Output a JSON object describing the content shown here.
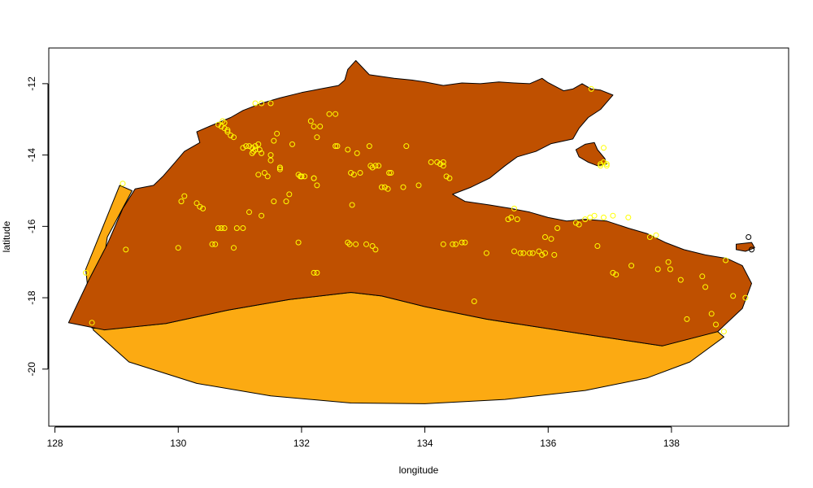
{
  "chart_data": {
    "type": "scatter",
    "title": "",
    "xlabel": "longitude",
    "ylabel": "latitude",
    "xlim": [
      127.9,
      139.9
    ],
    "ylim": [
      -21.6,
      -11.0
    ],
    "x_ticks": [
      128,
      130,
      132,
      134,
      136,
      138
    ],
    "y_ticks": [
      -12,
      -14,
      -16,
      -18,
      -20
    ],
    "grid": false,
    "legend": "none",
    "colors": {
      "background": "#ffffff",
      "land": "#bf5000",
      "buffer": "#fcaa12",
      "points_inside": "#ffff00",
      "points_outside": "#000000",
      "outline": "#000000"
    },
    "regions": [
      {
        "name": "buffer",
        "type": "area",
        "color": "#fcaa12",
        "outline": [
          [
            128.5,
            -17.2
          ],
          [
            129.05,
            -14.85
          ],
          [
            129.25,
            -15.0
          ],
          [
            128.85,
            -16.3
          ],
          [
            128.7,
            -18.0
          ],
          [
            128.62,
            -18.9
          ],
          [
            129.2,
            -19.8
          ],
          [
            130.3,
            -20.4
          ],
          [
            131.5,
            -20.75
          ],
          [
            132.8,
            -20.95
          ],
          [
            134.0,
            -20.97
          ],
          [
            135.3,
            -20.85
          ],
          [
            136.6,
            -20.6
          ],
          [
            137.6,
            -20.25
          ],
          [
            138.3,
            -19.8
          ],
          [
            138.85,
            -19.1
          ],
          [
            138.75,
            -18.95
          ],
          [
            137.85,
            -19.35
          ],
          [
            136.5,
            -19.0
          ],
          [
            135.0,
            -18.6
          ],
          [
            134.0,
            -18.25
          ],
          [
            133.3,
            -17.95
          ],
          [
            132.8,
            -17.85
          ],
          [
            131.8,
            -18.05
          ],
          [
            130.8,
            -18.35
          ],
          [
            129.8,
            -18.72
          ],
          [
            128.95,
            -18.87
          ],
          [
            128.6,
            -18.85
          ]
        ]
      },
      {
        "name": "land",
        "type": "area",
        "color": "#bf5000",
        "outline": [
          [
            128.22,
            -18.7
          ],
          [
            128.55,
            -17.5
          ],
          [
            128.85,
            -16.5
          ],
          [
            129.1,
            -15.5
          ],
          [
            129.3,
            -14.95
          ],
          [
            129.6,
            -14.85
          ],
          [
            129.75,
            -14.6
          ],
          [
            129.95,
            -14.2
          ],
          [
            130.1,
            -13.9
          ],
          [
            130.35,
            -13.65
          ],
          [
            130.3,
            -13.35
          ],
          [
            130.5,
            -13.2
          ],
          [
            130.85,
            -12.95
          ],
          [
            131.05,
            -12.75
          ],
          [
            131.35,
            -12.55
          ],
          [
            131.65,
            -12.4
          ],
          [
            132.0,
            -12.25
          ],
          [
            132.3,
            -12.15
          ],
          [
            132.6,
            -12.05
          ],
          [
            132.7,
            -11.9
          ],
          [
            132.75,
            -11.6
          ],
          [
            132.88,
            -11.35
          ],
          [
            133.1,
            -11.75
          ],
          [
            133.5,
            -11.85
          ],
          [
            133.8,
            -11.9
          ],
          [
            134.0,
            -11.95
          ],
          [
            134.3,
            -12.05
          ],
          [
            134.6,
            -11.98
          ],
          [
            134.9,
            -12.0
          ],
          [
            135.2,
            -11.95
          ],
          [
            135.45,
            -11.98
          ],
          [
            135.7,
            -12.0
          ],
          [
            135.9,
            -11.85
          ],
          [
            136.0,
            -11.97
          ],
          [
            136.25,
            -12.2
          ],
          [
            136.4,
            -12.15
          ],
          [
            136.55,
            -12.0
          ],
          [
            136.7,
            -12.15
          ],
          [
            136.85,
            -12.18
          ],
          [
            137.05,
            -12.32
          ],
          [
            136.85,
            -12.72
          ],
          [
            136.65,
            -12.95
          ],
          [
            136.5,
            -13.25
          ],
          [
            136.4,
            -13.55
          ],
          [
            136.05,
            -13.68
          ],
          [
            135.8,
            -13.9
          ],
          [
            135.5,
            -14.05
          ],
          [
            135.3,
            -14.3
          ],
          [
            135.05,
            -14.65
          ],
          [
            134.75,
            -14.9
          ],
          [
            134.45,
            -15.1
          ],
          [
            134.65,
            -15.3
          ],
          [
            135.05,
            -15.4
          ],
          [
            135.4,
            -15.5
          ],
          [
            135.7,
            -15.6
          ],
          [
            136.0,
            -15.75
          ],
          [
            136.3,
            -15.85
          ],
          [
            136.6,
            -15.8
          ],
          [
            136.95,
            -15.85
          ],
          [
            137.3,
            -16.05
          ],
          [
            137.6,
            -16.2
          ],
          [
            137.9,
            -16.45
          ],
          [
            138.2,
            -16.65
          ],
          [
            138.55,
            -16.8
          ],
          [
            138.9,
            -16.9
          ],
          [
            139.15,
            -17.1
          ],
          [
            139.3,
            -17.6
          ],
          [
            139.15,
            -18.3
          ],
          [
            138.75,
            -18.95
          ],
          [
            137.85,
            -19.35
          ],
          [
            136.5,
            -19.0
          ],
          [
            135.0,
            -18.6
          ],
          [
            134.0,
            -18.25
          ],
          [
            133.3,
            -17.95
          ],
          [
            132.8,
            -17.85
          ],
          [
            131.8,
            -18.05
          ],
          [
            130.8,
            -18.35
          ],
          [
            129.8,
            -18.72
          ],
          [
            128.8,
            -18.9
          ]
        ]
      },
      {
        "name": "groote-eylandt",
        "type": "area",
        "color": "#bf5000",
        "outline": [
          [
            136.45,
            -13.85
          ],
          [
            136.6,
            -13.7
          ],
          [
            136.75,
            -13.65
          ],
          [
            136.8,
            -13.85
          ],
          [
            136.92,
            -14.1
          ],
          [
            136.95,
            -14.25
          ],
          [
            136.8,
            -14.3
          ],
          [
            136.65,
            -14.2
          ],
          [
            136.5,
            -14.05
          ]
        ]
      },
      {
        "name": "mornington-island",
        "type": "area",
        "color": "#bf5000",
        "outline": [
          [
            139.05,
            -16.5
          ],
          [
            139.3,
            -16.45
          ],
          [
            139.35,
            -16.6
          ],
          [
            139.2,
            -16.7
          ],
          [
            139.05,
            -16.65
          ]
        ]
      }
    ],
    "series": [
      {
        "name": "",
        "color": "#ffff00",
        "x": [
          128.5,
          128.6,
          129.1,
          130.1,
          130.05,
          130.3,
          130.35,
          130.4,
          130.6,
          130.65,
          130.7,
          130.72,
          130.75,
          130.8,
          130.65,
          130.7,
          130.75,
          130.8,
          130.85,
          130.9,
          130.9,
          131.1,
          131.2,
          131.25,
          131.3,
          131.32,
          131.35,
          131.3,
          131.4,
          131.45,
          131.5,
          131.5,
          131.55,
          131.6,
          131.65,
          131.65,
          131.75,
          131.8,
          131.95,
          131.98,
          132.0,
          132.05,
          132.15,
          132.2,
          132.25,
          132.3,
          132.2,
          132.25,
          132.55,
          132.58,
          132.55,
          132.75,
          132.8,
          132.85,
          132.9,
          132.95,
          133.1,
          133.12,
          133.15,
          133.2,
          133.25,
          133.3,
          133.35,
          133.4,
          133.45,
          133.42,
          132.82,
          132.75,
          132.78,
          132.88,
          133.05,
          133.15,
          133.2,
          132.25,
          131.05,
          130.95,
          130.75,
          130.55,
          131.15,
          131.35,
          131.55,
          131.95,
          132.2,
          131.25,
          131.35,
          131.5,
          131.15,
          131.05,
          131.25,
          131.2,
          131.22,
          131.65,
          131.85,
          132.0,
          132.2,
          133.65,
          134.1,
          134.25,
          134.3,
          134.35,
          134.4,
          134.2,
          134.3,
          134.3,
          134.5,
          134.6,
          134.8,
          135.0,
          135.35,
          135.4,
          135.45,
          135.5,
          135.55,
          135.7,
          135.75,
          135.85,
          135.95,
          136.05,
          136.1,
          136.15,
          136.45,
          136.5,
          136.6,
          136.68,
          136.75,
          136.9,
          137.05,
          137.1,
          137.35,
          137.65,
          137.75,
          137.78,
          137.95,
          137.98,
          138.15,
          138.25,
          138.5,
          138.55,
          138.65,
          138.72,
          138.85,
          138.88,
          139.0,
          139.2,
          136.85,
          136.85,
          136.9,
          136.95,
          136.95,
          136.7,
          136.9,
          137.05,
          137.3,
          130.0,
          129.15,
          133.7,
          132.45,
          133.9,
          135.95,
          136.8,
          135.9,
          135.45,
          135.6,
          134.45,
          134.65
        ],
        "y": [
          -17.3,
          -18.7,
          -14.8,
          -15.15,
          -15.3,
          -15.35,
          -15.45,
          -15.5,
          -16.5,
          -16.05,
          -16.05,
          -13.05,
          -13.1,
          -13.3,
          -13.15,
          -13.2,
          -13.25,
          -13.35,
          -13.45,
          -13.5,
          -16.6,
          -13.75,
          -13.8,
          -13.75,
          -13.7,
          -13.85,
          -13.95,
          -14.55,
          -14.5,
          -14.6,
          -14.15,
          -14.0,
          -13.6,
          -13.4,
          -14.35,
          -14.4,
          -15.3,
          -15.1,
          -14.55,
          -14.6,
          -14.6,
          -14.6,
          -13.05,
          -13.2,
          -13.5,
          -13.2,
          -14.65,
          -14.85,
          -13.75,
          -13.75,
          -12.85,
          -13.85,
          -14.5,
          -14.55,
          -13.95,
          -14.5,
          -13.75,
          -14.3,
          -14.35,
          -14.3,
          -14.3,
          -14.9,
          -14.9,
          -14.95,
          -14.5,
          -14.5,
          -15.4,
          -16.45,
          -16.5,
          -16.5,
          -16.5,
          -16.55,
          -16.65,
          -17.3,
          -16.05,
          -16.05,
          -16.05,
          -16.5,
          -15.6,
          -15.7,
          -15.3,
          -16.45,
          -17.3,
          -12.55,
          -12.55,
          -12.55,
          -13.75,
          -13.8,
          -13.85,
          -13.95,
          -13.9,
          -14.35,
          -13.7,
          -14.6,
          -14.65,
          -14.9,
          -14.2,
          -14.25,
          -14.3,
          -14.6,
          -14.65,
          -14.2,
          -14.2,
          -16.5,
          -16.5,
          -16.45,
          -18.1,
          -16.75,
          -15.8,
          -15.75,
          -15.5,
          -15.8,
          -16.75,
          -16.75,
          -16.75,
          -16.7,
          -16.3,
          -16.35,
          -16.8,
          -16.05,
          -15.9,
          -15.95,
          -15.8,
          -15.75,
          -15.7,
          -15.75,
          -17.3,
          -17.35,
          -17.1,
          -16.3,
          -16.25,
          -17.2,
          -17.0,
          -17.2,
          -17.5,
          -18.6,
          -17.4,
          -17.7,
          -18.45,
          -18.75,
          -18.95,
          -16.95,
          -17.95,
          -18.0,
          -14.25,
          -14.3,
          -14.2,
          -14.3,
          -14.25,
          -12.15,
          -13.8,
          -15.7,
          -15.75,
          -16.6,
          -16.65,
          -13.75,
          -12.85,
          -14.85,
          -16.75,
          -16.55,
          -16.8,
          -16.7,
          -16.75,
          -16.5,
          -16.45
        ]
      },
      {
        "name": "",
        "color": "#000000",
        "x": [
          139.25,
          139.3
        ],
        "y": [
          -16.3,
          -16.65
        ]
      }
    ]
  }
}
